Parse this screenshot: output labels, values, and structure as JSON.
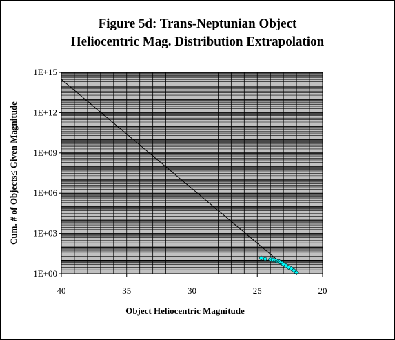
{
  "chart_data": {
    "type": "scatter",
    "title": "Figure 5d:  Trans-Neptunian Object",
    "subtitle": "Heliocentric Mag. Distribution Extrapolation",
    "xlabel": "Object Heliocentric Magnitude",
    "ylabel": "Cum. # of Objects≤ Given Magnitude",
    "xlim": [
      40,
      20
    ],
    "x_reversed": true,
    "xticks": [
      40,
      35,
      30,
      25,
      20
    ],
    "xtick_labels": [
      "40",
      "35",
      "30",
      "25",
      "20"
    ],
    "ylim": [
      1,
      1000000000000000.0
    ],
    "yscale": "log",
    "yticks": [
      1,
      1000,
      1000000,
      1000000000,
      1000000000000,
      1000000000000000
    ],
    "ytick_labels": [
      "1E+00",
      "1E+03",
      "1E+06",
      "1E+09",
      "1E+12",
      "1E+15"
    ],
    "grid": true,
    "plot_background": "#c0c0c0",
    "series": [
      {
        "type": "line",
        "color": "#000000",
        "x": [
          40.0,
          23.0
        ],
        "y": [
          300000000000000.0,
          4.5
        ]
      },
      {
        "type": "scatter",
        "color": "#00ffff",
        "marker": "diamond",
        "x": [
          24.7,
          24.4,
          24.0,
          23.8,
          23.6,
          23.5,
          23.4,
          23.3,
          23.2,
          23.1,
          23.0,
          22.8,
          22.6,
          22.4,
          22.2,
          22.0
        ],
        "y": [
          15,
          13,
          12,
          11,
          10,
          9,
          8.5,
          8,
          7,
          6,
          5,
          4,
          3,
          2.5,
          1.8,
          1.2
        ]
      }
    ]
  }
}
